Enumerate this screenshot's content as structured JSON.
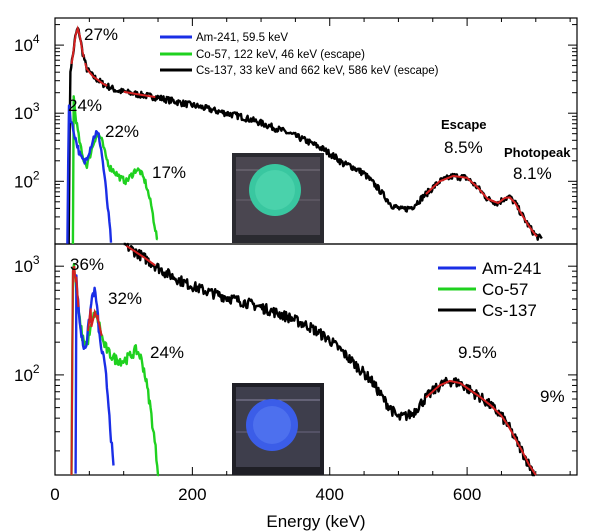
{
  "colors": {
    "am241": "#1a2ee6",
    "co57": "#1fd11f",
    "cs137": "#000000",
    "fit": "#d42020"
  },
  "chart_data": [
    {
      "type": "line",
      "panel": "top",
      "x_scale": "linear",
      "y_scale": "log",
      "xlim": [
        0,
        760
      ],
      "ylim": [
        12,
        25000
      ],
      "y_ticks": [
        {
          "value": 100,
          "base": "10",
          "exp": "2"
        },
        {
          "value": 1000,
          "base": "10",
          "exp": "3"
        },
        {
          "value": 10000,
          "base": "10",
          "exp": "4"
        }
      ],
      "legend": {
        "placement": "top-center",
        "entries": [
          "Am-241, 59.5 keV",
          "Co-57, 122 keV, 46 keV (escape)",
          "Cs-137, 33 keV and 662 keV, 586 keV (escape)"
        ]
      },
      "series": [
        {
          "name": "Am-241, 59.5 keV",
          "color_key": "am241",
          "points": [
            [
              18,
              12
            ],
            [
              20,
              1400
            ],
            [
              23,
              800
            ],
            [
              30,
              420
            ],
            [
              37,
              230
            ],
            [
              43,
              190
            ],
            [
              50,
              280
            ],
            [
              56,
              430
            ],
            [
              60,
              520
            ],
            [
              64,
              460
            ],
            [
              68,
              260
            ],
            [
              72,
              120
            ],
            [
              76,
              50
            ],
            [
              80,
              20
            ],
            [
              82,
              12
            ]
          ]
        },
        {
          "name": "Co-57, 122 keV, 46 keV (escape)",
          "color_key": "co57",
          "points": [
            [
              26,
              12
            ],
            [
              27,
              1800
            ],
            [
              30,
              900
            ],
            [
              35,
              420
            ],
            [
              40,
              230
            ],
            [
              46,
              170
            ],
            [
              52,
              260
            ],
            [
              58,
              420
            ],
            [
              63,
              500
            ],
            [
              68,
              400
            ],
            [
              74,
              230
            ],
            [
              80,
              160
            ],
            [
              88,
              135
            ],
            [
              96,
              110
            ],
            [
              104,
              100
            ],
            [
              112,
              125
            ],
            [
              118,
              150
            ],
            [
              124,
              140
            ],
            [
              132,
              95
            ],
            [
              140,
              45
            ],
            [
              146,
              20
            ],
            [
              150,
              12
            ]
          ]
        },
        {
          "name": "Cs-137, 33 keV and 662 keV, 586 keV (escape)",
          "color_key": "cs137",
          "points": [
            [
              20,
              12
            ],
            [
              22,
              4000
            ],
            [
              26,
              7000
            ],
            [
              30,
              14000
            ],
            [
              33,
              17500
            ],
            [
              36,
              14000
            ],
            [
              40,
              8000
            ],
            [
              46,
              4500
            ],
            [
              55,
              3500
            ],
            [
              70,
              2700
            ],
            [
              90,
              2150
            ],
            [
              120,
              1900
            ],
            [
              150,
              1700
            ],
            [
              180,
              1450
            ],
            [
              210,
              1250
            ],
            [
              240,
              1050
            ],
            [
              270,
              900
            ],
            [
              300,
              720
            ],
            [
              330,
              560
            ],
            [
              360,
              420
            ],
            [
              390,
              300
            ],
            [
              410,
              220
            ],
            [
              420,
              180
            ],
            [
              430,
              170
            ],
            [
              450,
              130
            ],
            [
              470,
              80
            ],
            [
              490,
              45
            ],
            [
              505,
              38
            ],
            [
              520,
              42
            ],
            [
              540,
              65
            ],
            [
              560,
              100
            ],
            [
              580,
              120
            ],
            [
              600,
              112
            ],
            [
              615,
              82
            ],
            [
              630,
              55
            ],
            [
              645,
              48
            ],
            [
              655,
              57
            ],
            [
              662,
              58
            ],
            [
              670,
              48
            ],
            [
              680,
              32
            ],
            [
              690,
              22
            ],
            [
              700,
              16
            ],
            [
              710,
              14
            ]
          ]
        }
      ],
      "fits": [
        {
          "label": "27%",
          "x_range": [
            24,
            42
          ],
          "peak": 33
        },
        {
          "label": "22%",
          "x_range": [
            44,
            76
          ],
          "peak": 60
        },
        {
          "label": "17%",
          "x_range": [
            100,
            146
          ],
          "peak": 122
        },
        {
          "label": "8.5%",
          "x_range": [
            540,
            640
          ],
          "peak": 586
        },
        {
          "label": "8.1%",
          "x_range": [
            635,
            702
          ],
          "peak": 662
        }
      ],
      "annotations": [
        {
          "text": "27%",
          "bold": false
        },
        {
          "text": "24%",
          "bold": false
        },
        {
          "text": "22%",
          "bold": false
        },
        {
          "text": "17%",
          "bold": false
        },
        {
          "text": "Escape",
          "bold": true
        },
        {
          "text": "8.5%",
          "bold": false
        },
        {
          "text": "Photopeak",
          "bold": true
        },
        {
          "text": "8.1%",
          "bold": false
        }
      ]
    },
    {
      "type": "line",
      "panel": "bottom",
      "x_scale": "linear",
      "y_scale": "log",
      "xlim": [
        0,
        760
      ],
      "ylim": [
        12,
        1600
      ],
      "x_ticks": [
        0,
        200,
        400,
        600
      ],
      "y_ticks": [
        {
          "value": 100,
          "base": "10",
          "exp": "2"
        },
        {
          "value": 1000,
          "base": "10",
          "exp": "3"
        }
      ],
      "xlabel": "Energy (keV)",
      "legend": {
        "placement": "top-right",
        "entries": [
          "Am-241",
          "Co-57",
          "Cs-137"
        ]
      },
      "series": [
        {
          "name": "Am-241",
          "color_key": "am241",
          "points": [
            [
              30,
              12
            ],
            [
              31,
              800
            ],
            [
              34,
              420
            ],
            [
              38,
              240
            ],
            [
              42,
              180
            ],
            [
              46,
              200
            ],
            [
              50,
              320
            ],
            [
              54,
              520
            ],
            [
              57,
              600
            ],
            [
              60,
              500
            ],
            [
              63,
              300
            ],
            [
              66,
              190
            ],
            [
              70,
              150
            ],
            [
              74,
              100
            ],
            [
              78,
              55
            ],
            [
              82,
              25
            ],
            [
              85,
              14
            ],
            [
              86,
              12
            ]
          ]
        },
        {
          "name": "Co-57",
          "color_key": "co57",
          "points": [
            [
              24,
              12
            ],
            [
              26,
              900
            ],
            [
              28,
              1000
            ],
            [
              31,
              600
            ],
            [
              35,
              350
            ],
            [
              40,
              220
            ],
            [
              46,
              190
            ],
            [
              52,
              260
            ],
            [
              58,
              380
            ],
            [
              64,
              300
            ],
            [
              70,
              200
            ],
            [
              78,
              160
            ],
            [
              88,
              140
            ],
            [
              100,
              135
            ],
            [
              110,
              150
            ],
            [
              118,
              170
            ],
            [
              124,
              150
            ],
            [
              130,
              110
            ],
            [
              138,
              55
            ],
            [
              145,
              25
            ],
            [
              150,
              13
            ],
            [
              152,
              12
            ]
          ]
        },
        {
          "name": "Cs-137",
          "color_key": "cs137",
          "points": [
            [
              100,
              1600
            ],
            [
              130,
              1200
            ],
            [
              160,
              880
            ],
            [
              190,
              700
            ],
            [
              220,
              590
            ],
            [
              250,
              520
            ],
            [
              280,
              460
            ],
            [
              310,
              400
            ],
            [
              340,
              340
            ],
            [
              370,
              280
            ],
            [
              400,
              210
            ],
            [
              420,
              160
            ],
            [
              440,
              120
            ],
            [
              460,
              90
            ],
            [
              480,
              58
            ],
            [
              500,
              40
            ],
            [
              520,
              44
            ],
            [
              540,
              62
            ],
            [
              560,
              80
            ],
            [
              575,
              88
            ],
            [
              590,
              84
            ],
            [
              605,
              72
            ],
            [
              620,
              62
            ],
            [
              635,
              52
            ],
            [
              650,
              42
            ],
            [
              660,
              34
            ],
            [
              670,
              26
            ],
            [
              680,
              20
            ],
            [
              690,
              15
            ],
            [
              700,
              12
            ]
          ]
        }
      ],
      "fits": [
        {
          "label": "36%",
          "x_range": [
            24,
            34
          ],
          "peak": 28
        },
        {
          "label": "32%",
          "x_range": [
            48,
            68
          ],
          "peak": 57
        },
        {
          "label": "24%",
          "x_range": [
            104,
            146
          ],
          "peak": 120
        },
        {
          "label": "9.5%",
          "x_range": [
            540,
            640
          ],
          "peak": 586
        },
        {
          "label": "9%",
          "x_range": [
            630,
            702
          ],
          "peak": 662
        }
      ],
      "annotations": [
        {
          "text": "36%",
          "bold": false
        },
        {
          "text": "32%",
          "bold": false
        },
        {
          "text": "24%",
          "bold": false
        },
        {
          "text": "9.5%",
          "bold": false
        },
        {
          "text": "9%",
          "bold": false
        }
      ]
    }
  ]
}
